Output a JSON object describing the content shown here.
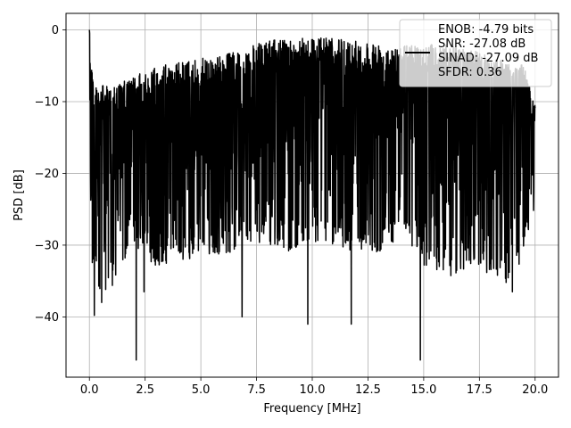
{
  "chart_data": {
    "type": "line",
    "title": "",
    "xlabel": "Frequency [MHz]",
    "ylabel": "PSD [dB]",
    "xlim": [
      -1.05,
      21.05
    ],
    "ylim": [
      -48.4,
      2.3
    ],
    "xticks": [
      0.0,
      2.5,
      5.0,
      7.5,
      10.0,
      12.5,
      15.0,
      17.5,
      20.0
    ],
    "xtick_labels": [
      "0.0",
      "2.5",
      "5.0",
      "7.5",
      "10.0",
      "12.5",
      "15.0",
      "17.5",
      "20.0"
    ],
    "yticks": [
      0,
      -10,
      -20,
      -30,
      -40
    ],
    "ytick_labels": [
      "0",
      "−10",
      "−20",
      "−30",
      "−40"
    ],
    "grid": true,
    "legend": {
      "placement": "top-right",
      "lines": [
        "ENOB: -4.79 bits",
        "SNR: -27.08 dB",
        "SINAD: -27.09 dB",
        "SFDR: 0.36"
      ]
    },
    "series": [
      {
        "color": "#000000",
        "x_range": [
          0.0,
          20.0
        ],
        "envelope_upper": [
          [
            0.0,
            0.0
          ],
          [
            0.2,
            -7.5
          ],
          [
            1.0,
            -8.0
          ],
          [
            2.0,
            -6.5
          ],
          [
            3.0,
            -5.0
          ],
          [
            5.0,
            -4.0
          ],
          [
            6.0,
            -3.5
          ],
          [
            8.0,
            -1.5
          ],
          [
            10.0,
            -1.0
          ],
          [
            12.0,
            -1.5
          ],
          [
            14.0,
            -2.0
          ],
          [
            16.0,
            -2.0
          ],
          [
            18.0,
            -3.5
          ],
          [
            19.5,
            -5.0
          ],
          [
            20.0,
            -10.0
          ]
        ],
        "envelope_lower": [
          [
            0.0,
            -28.0
          ],
          [
            0.5,
            -35.0
          ],
          [
            1.0,
            -33.0
          ],
          [
            2.0,
            -27.0
          ],
          [
            3.0,
            -30.0
          ],
          [
            4.0,
            -30.0
          ],
          [
            5.0,
            -28.0
          ],
          [
            6.0,
            -29.0
          ],
          [
            7.0,
            -27.0
          ],
          [
            8.0,
            -27.0
          ],
          [
            9.0,
            -28.0
          ],
          [
            10.0,
            -27.0
          ],
          [
            11.0,
            -27.0
          ],
          [
            12.0,
            -28.0
          ],
          [
            13.0,
            -28.0
          ],
          [
            14.0,
            -26.0
          ],
          [
            15.0,
            -30.0
          ],
          [
            16.0,
            -32.0
          ],
          [
            17.0,
            -30.0
          ],
          [
            18.0,
            -31.0
          ],
          [
            19.0,
            -33.0
          ],
          [
            20.0,
            -22.0
          ]
        ],
        "notable_points": [
          {
            "x": 0.0,
            "y": 0.0
          },
          {
            "x": 0.22,
            "y": -39.8
          },
          {
            "x": 0.55,
            "y": -38.0
          },
          {
            "x": 2.1,
            "y": -46.0
          },
          {
            "x": 2.45,
            "y": -36.5
          },
          {
            "x": 6.85,
            "y": -40.0
          },
          {
            "x": 9.8,
            "y": -41.0
          },
          {
            "x": 11.75,
            "y": -41.0
          },
          {
            "x": 14.85,
            "y": -46.0
          },
          {
            "x": 18.98,
            "y": -36.5
          }
        ]
      }
    ]
  }
}
